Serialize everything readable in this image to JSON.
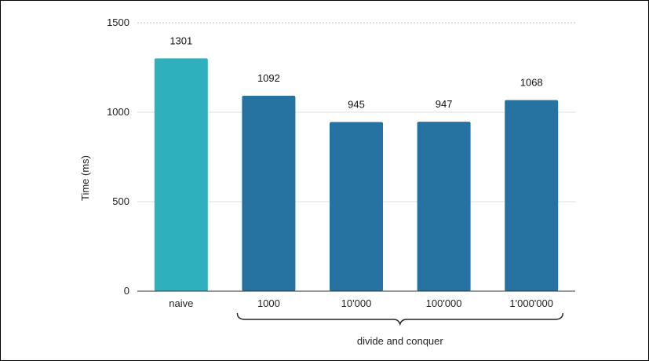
{
  "chart_data": {
    "type": "bar",
    "title": "",
    "xlabel": "",
    "ylabel": "Time (ms)",
    "ylim": [
      0,
      1500
    ],
    "yticks": [
      0,
      500,
      1000,
      1500
    ],
    "grid": true,
    "categories": [
      "naive",
      "1000",
      "10'000",
      "100'000",
      "1'000'000"
    ],
    "values": [
      1301,
      1092,
      945,
      947,
      1068
    ],
    "data_labels": [
      "1301",
      "1092",
      "945",
      "947",
      "1068"
    ],
    "bar_colors": [
      "#2fb0bd",
      "#2673a1",
      "#2673a1",
      "#2673a1",
      "#2673a1"
    ],
    "group_label": {
      "text": "divide and conquer",
      "from_category": 1,
      "to_category": 4
    }
  }
}
